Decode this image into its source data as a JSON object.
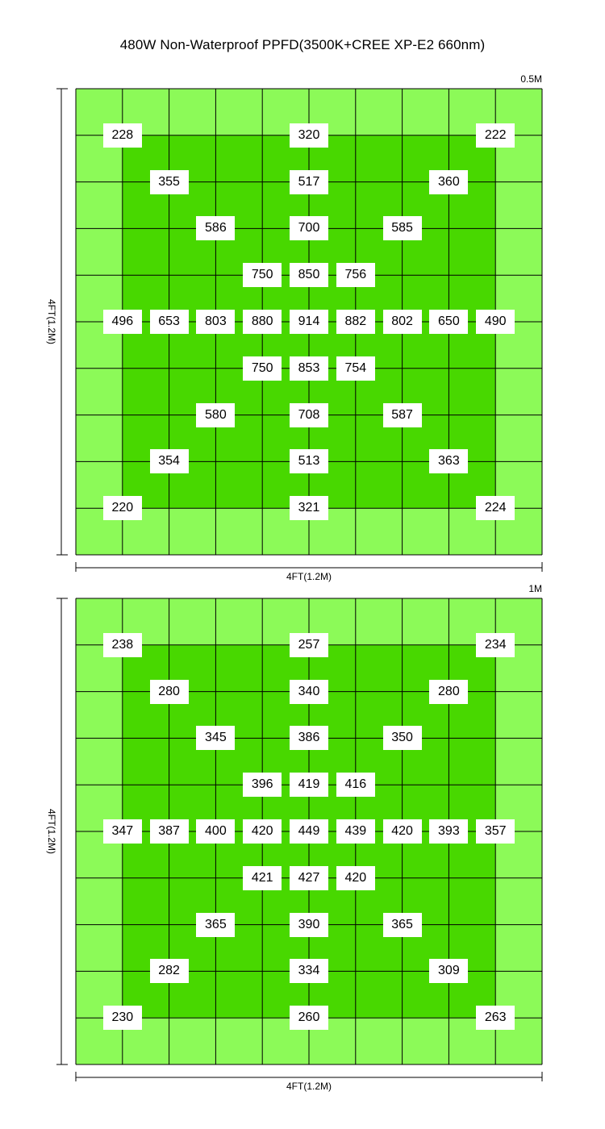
{
  "title": "480W Non-Waterproof PPFD(3500K+CREE XP-E2 660nm)",
  "colors": {
    "outer": "#8cfa58",
    "inner": "#48d800",
    "grid_line": "#000000",
    "label_bg": "#ffffff"
  },
  "chart_data": [
    {
      "type": "heatmap",
      "height_label": "0.5M",
      "xlabel": "4FT(1.2M)",
      "ylabel": "4FT(1.2M)",
      "grid": true,
      "columns": 10,
      "rows": 10,
      "points": [
        {
          "col": 1,
          "row": 1,
          "value": 228
        },
        {
          "col": 5,
          "row": 1,
          "value": 320
        },
        {
          "col": 9,
          "row": 1,
          "value": 222
        },
        {
          "col": 2,
          "row": 2,
          "value": 355
        },
        {
          "col": 5,
          "row": 2,
          "value": 517
        },
        {
          "col": 8,
          "row": 2,
          "value": 360
        },
        {
          "col": 3,
          "row": 3,
          "value": 586
        },
        {
          "col": 5,
          "row": 3,
          "value": 700
        },
        {
          "col": 7,
          "row": 3,
          "value": 585
        },
        {
          "col": 4,
          "row": 4,
          "value": 750
        },
        {
          "col": 5,
          "row": 4,
          "value": 850
        },
        {
          "col": 6,
          "row": 4,
          "value": 756
        },
        {
          "col": 1,
          "row": 5,
          "value": 496
        },
        {
          "col": 2,
          "row": 5,
          "value": 653
        },
        {
          "col": 3,
          "row": 5,
          "value": 803
        },
        {
          "col": 4,
          "row": 5,
          "value": 880
        },
        {
          "col": 5,
          "row": 5,
          "value": 914
        },
        {
          "col": 6,
          "row": 5,
          "value": 882
        },
        {
          "col": 7,
          "row": 5,
          "value": 802
        },
        {
          "col": 8,
          "row": 5,
          "value": 650
        },
        {
          "col": 9,
          "row": 5,
          "value": 490
        },
        {
          "col": 4,
          "row": 6,
          "value": 750
        },
        {
          "col": 5,
          "row": 6,
          "value": 853
        },
        {
          "col": 6,
          "row": 6,
          "value": 754
        },
        {
          "col": 3,
          "row": 7,
          "value": 580
        },
        {
          "col": 5,
          "row": 7,
          "value": 708
        },
        {
          "col": 7,
          "row": 7,
          "value": 587
        },
        {
          "col": 2,
          "row": 8,
          "value": 354
        },
        {
          "col": 5,
          "row": 8,
          "value": 513
        },
        {
          "col": 8,
          "row": 8,
          "value": 363
        },
        {
          "col": 1,
          "row": 9,
          "value": 220
        },
        {
          "col": 5,
          "row": 9,
          "value": 321
        },
        {
          "col": 9,
          "row": 9,
          "value": 224
        }
      ]
    },
    {
      "type": "heatmap",
      "height_label": "1M",
      "xlabel": "4FT(1.2M)",
      "ylabel": "4FT(1.2M)",
      "grid": true,
      "columns": 10,
      "rows": 10,
      "points": [
        {
          "col": 1,
          "row": 1,
          "value": 238
        },
        {
          "col": 5,
          "row": 1,
          "value": 257
        },
        {
          "col": 9,
          "row": 1,
          "value": 234
        },
        {
          "col": 2,
          "row": 2,
          "value": 280
        },
        {
          "col": 5,
          "row": 2,
          "value": 340
        },
        {
          "col": 8,
          "row": 2,
          "value": 280
        },
        {
          "col": 3,
          "row": 3,
          "value": 345
        },
        {
          "col": 5,
          "row": 3,
          "value": 386
        },
        {
          "col": 7,
          "row": 3,
          "value": 350
        },
        {
          "col": 4,
          "row": 4,
          "value": 396
        },
        {
          "col": 5,
          "row": 4,
          "value": 419
        },
        {
          "col": 6,
          "row": 4,
          "value": 416
        },
        {
          "col": 1,
          "row": 5,
          "value": 347
        },
        {
          "col": 2,
          "row": 5,
          "value": 387
        },
        {
          "col": 3,
          "row": 5,
          "value": 400
        },
        {
          "col": 4,
          "row": 5,
          "value": 420
        },
        {
          "col": 5,
          "row": 5,
          "value": 449
        },
        {
          "col": 6,
          "row": 5,
          "value": 439
        },
        {
          "col": 7,
          "row": 5,
          "value": 420
        },
        {
          "col": 8,
          "row": 5,
          "value": 393
        },
        {
          "col": 9,
          "row": 5,
          "value": 357
        },
        {
          "col": 4,
          "row": 6,
          "value": 421
        },
        {
          "col": 5,
          "row": 6,
          "value": 427
        },
        {
          "col": 6,
          "row": 6,
          "value": 420
        },
        {
          "col": 3,
          "row": 7,
          "value": 365
        },
        {
          "col": 5,
          "row": 7,
          "value": 390
        },
        {
          "col": 7,
          "row": 7,
          "value": 365
        },
        {
          "col": 2,
          "row": 8,
          "value": 282
        },
        {
          "col": 5,
          "row": 8,
          "value": 334
        },
        {
          "col": 8,
          "row": 8,
          "value": 309
        },
        {
          "col": 1,
          "row": 9,
          "value": 230
        },
        {
          "col": 5,
          "row": 9,
          "value": 260
        },
        {
          "col": 9,
          "row": 9,
          "value": 263
        }
      ]
    }
  ]
}
